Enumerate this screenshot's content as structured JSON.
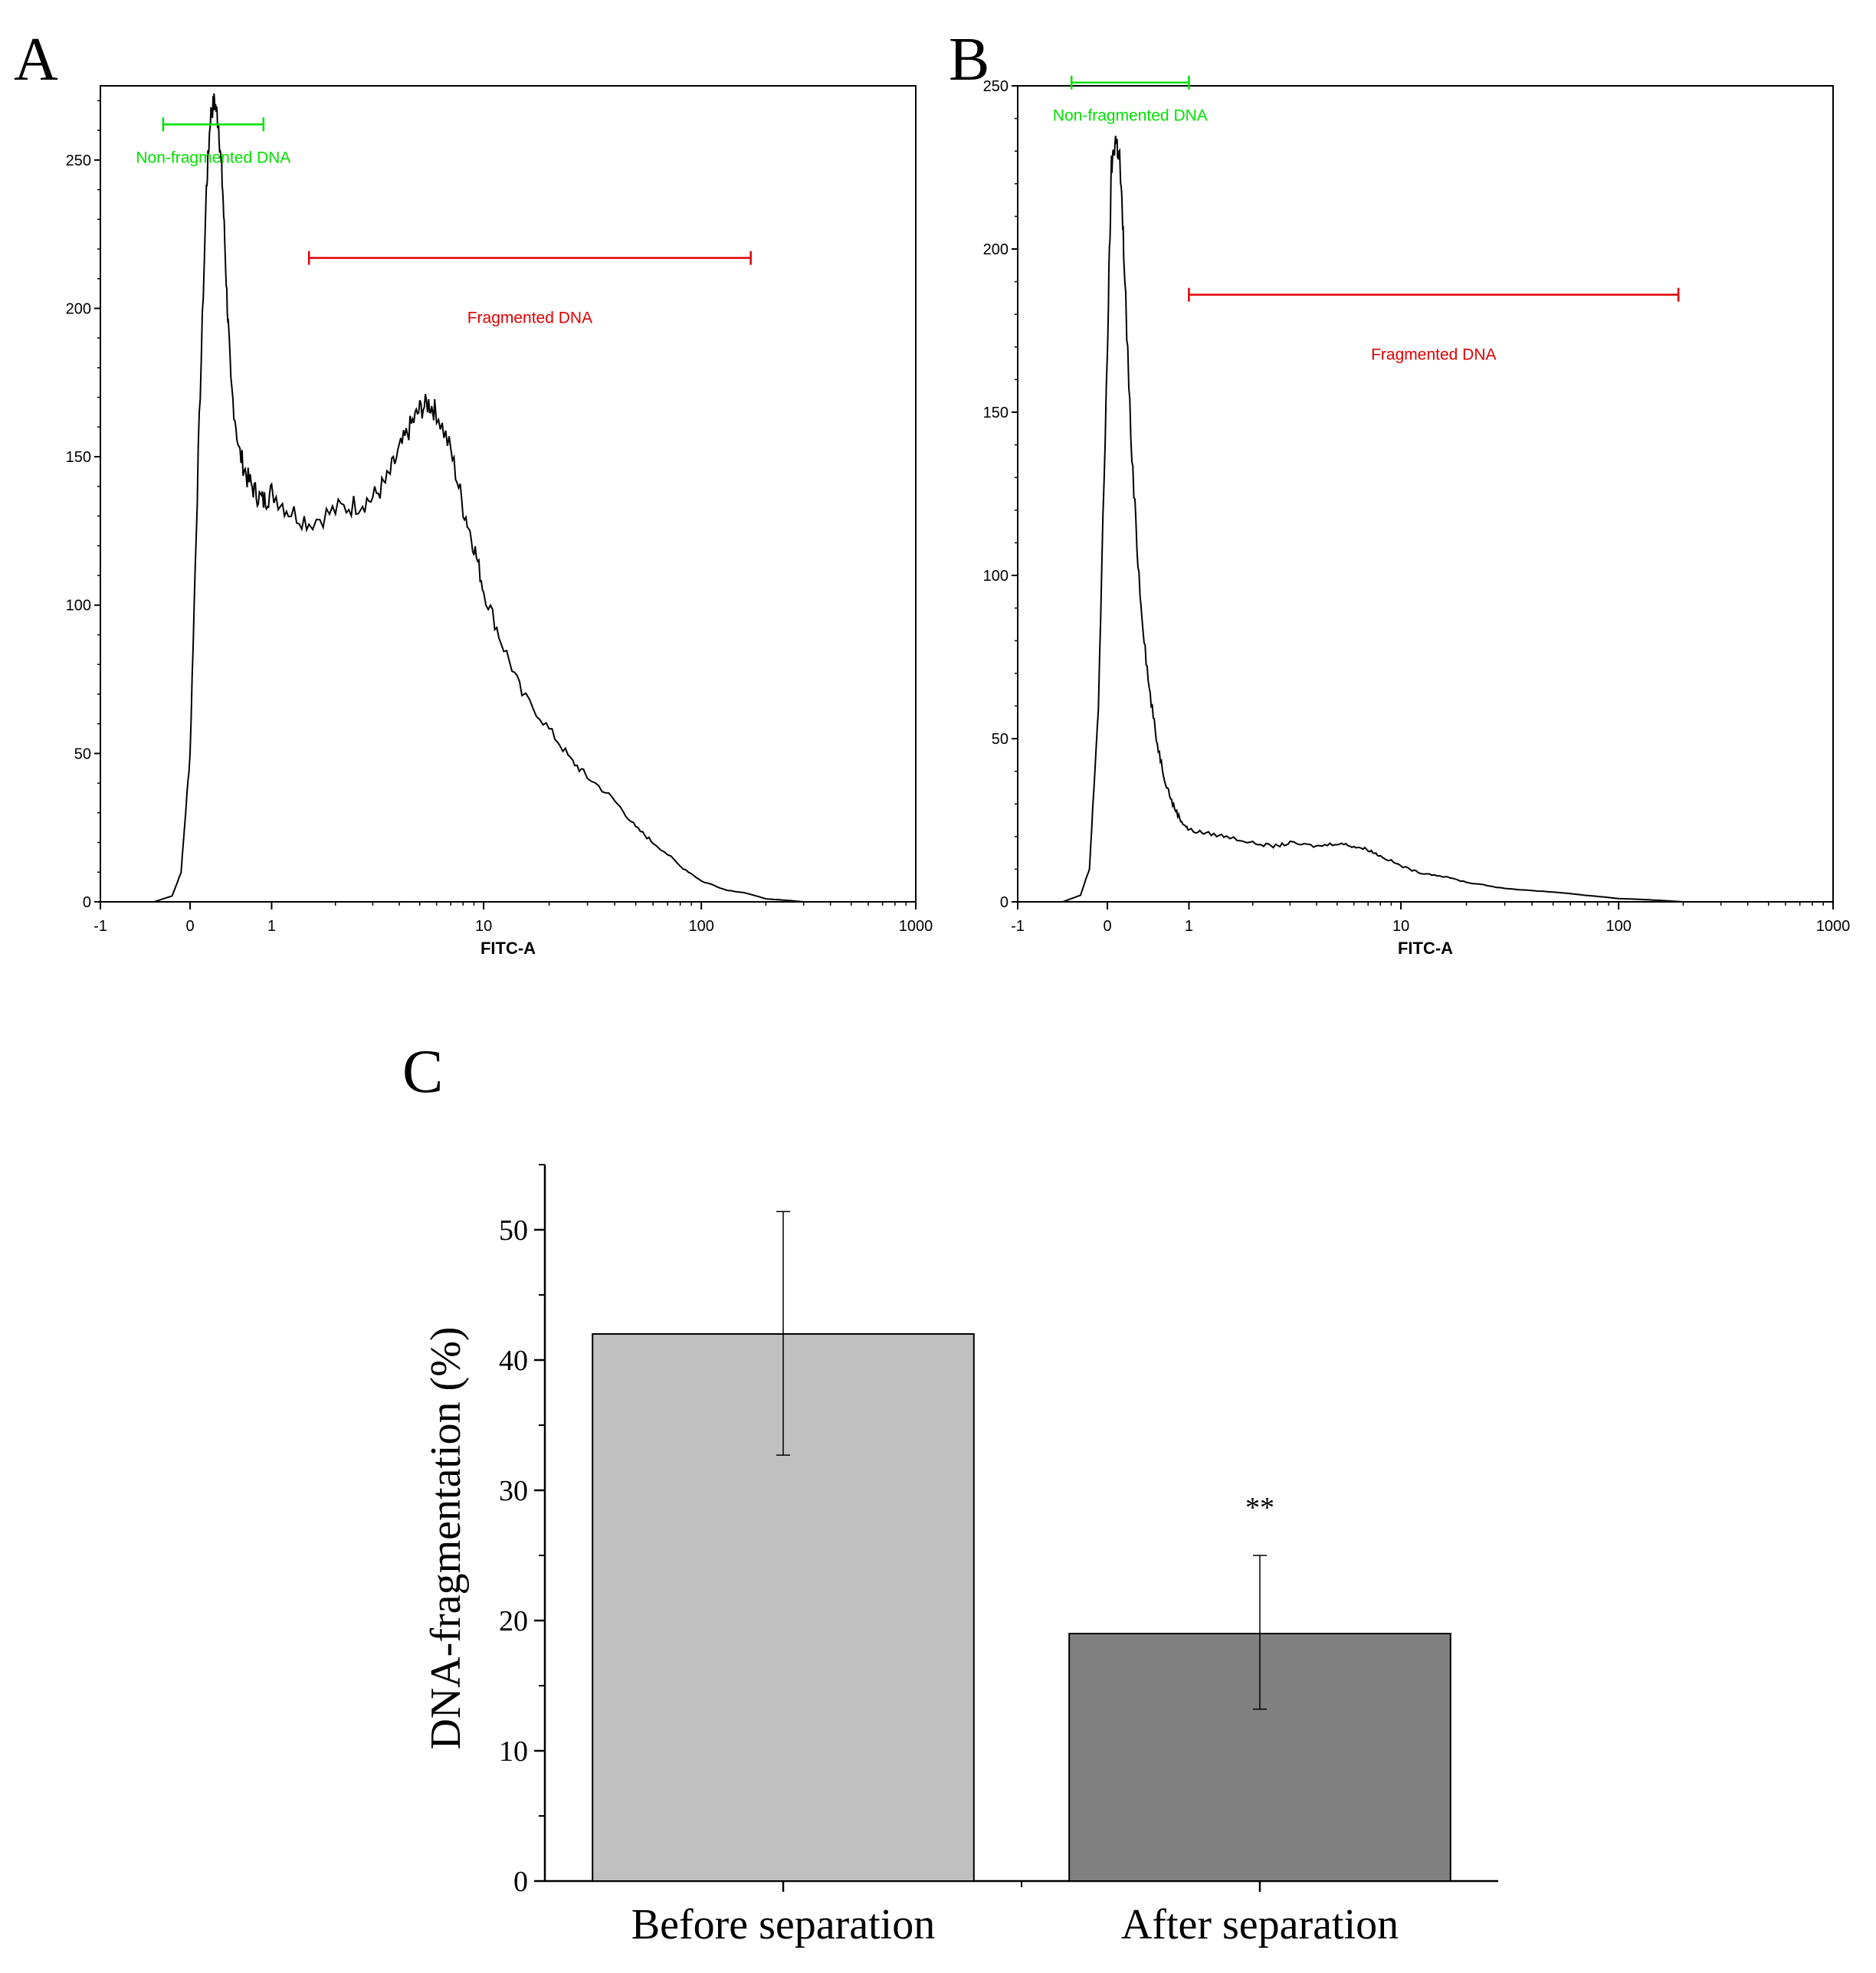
{
  "chart_data": [
    {
      "panel": "A",
      "type": "line",
      "xlabel": "FITC-A",
      "ylabel": "",
      "xscale": "biexponential",
      "x_ticks": [
        -1,
        0,
        1,
        10,
        100,
        1000
      ],
      "x_tick_labels": [
        "-1",
        "0",
        "1",
        "10",
        "100",
        "1000"
      ],
      "y_ticks": [
        0,
        50,
        100,
        150,
        200,
        250
      ],
      "y_tick_labels": [
        "0",
        "50",
        "100",
        "150",
        "200",
        "250"
      ],
      "xlim": [
        -1,
        1000
      ],
      "ylim": [
        0,
        275
      ],
      "grid": false,
      "series": [
        {
          "color": "#000000",
          "x": [
            -0.4,
            -0.2,
            -0.1,
            0,
            0.1,
            0.2,
            0.25,
            0.3,
            0.35,
            0.4,
            0.45,
            0.5,
            0.6,
            0.7,
            0.8,
            0.9,
            1.0,
            1.2,
            1.5,
            2,
            2.5,
            3,
            3.5,
            4,
            4.5,
            5,
            5.5,
            6,
            7,
            8,
            9,
            10,
            12,
            15,
            20,
            25,
            30,
            40,
            50,
            60,
            80,
            100,
            130,
            160,
            200,
            250,
            300
          ],
          "y": [
            0,
            2,
            10,
            50,
            150,
            240,
            265,
            270,
            262,
            240,
            205,
            175,
            152,
            143,
            138,
            135,
            138,
            132,
            128,
            132,
            134,
            136,
            142,
            152,
            160,
            166,
            168,
            165,
            152,
            133,
            120,
            105,
            88,
            70,
            58,
            48,
            42,
            34,
            25,
            20,
            12,
            7,
            4,
            3,
            1,
            0.5,
            0
          ]
        }
      ],
      "gates": [
        {
          "label": "Non-fragmented DNA",
          "color": "#00e000",
          "x_start": -0.3,
          "x_end": 0.9,
          "y": 262
        },
        {
          "label": "Fragmented DNA",
          "color": "#e00000",
          "x_start": 1.5,
          "x_end": 170,
          "y": 217
        }
      ]
    },
    {
      "panel": "B",
      "type": "line",
      "xlabel": "FITC-A",
      "ylabel": "",
      "xscale": "biexponential",
      "x_ticks": [
        -1,
        0,
        1,
        10,
        100,
        1000
      ],
      "x_tick_labels": [
        "-1",
        "0",
        "1",
        "10",
        "100",
        "1000"
      ],
      "y_ticks": [
        0,
        50,
        100,
        150,
        200,
        250
      ],
      "y_tick_labels": [
        "0",
        "50",
        "100",
        "150",
        "200",
        "250"
      ],
      "xlim": [
        -1,
        1000
      ],
      "ylim": [
        0,
        250
      ],
      "grid": false,
      "series": [
        {
          "color": "#000000",
          "x": [
            -0.5,
            -0.3,
            -0.2,
            -0.1,
            0,
            0.05,
            0.1,
            0.15,
            0.2,
            0.3,
            0.4,
            0.5,
            0.6,
            0.7,
            0.8,
            0.9,
            1.0,
            1.2,
            1.5,
            2,
            2.5,
            3,
            4,
            5,
            6,
            7,
            8,
            10,
            12,
            15,
            20,
            30,
            50,
            70,
            100,
            150,
            200
          ],
          "y": [
            0,
            2,
            10,
            60,
            170,
            225,
            234,
            228,
            200,
            135,
            95,
            68,
            50,
            38,
            30,
            25,
            22,
            21,
            20,
            18,
            17,
            18,
            17,
            18,
            17,
            16,
            14,
            11,
            9,
            8,
            6,
            4,
            3,
            2,
            1,
            0.5,
            0
          ]
        }
      ],
      "gates": [
        {
          "label": "Non-fragmented DNA",
          "color": "#00e000",
          "x_start": -0.4,
          "x_end": 1.0,
          "y": 251
        },
        {
          "label": "Fragmented DNA",
          "color": "#e00000",
          "x_start": 1.0,
          "x_end": 190,
          "y": 186
        }
      ]
    },
    {
      "panel": "C",
      "type": "bar",
      "title": "",
      "xlabel": "",
      "ylabel": "DNA-fragmentation (%)",
      "categories": [
        "Before separation",
        "After separation"
      ],
      "values": [
        42,
        19
      ],
      "errors": [
        {
          "low": 32.7,
          "high": 51.4
        },
        {
          "low": 13.2,
          "high": 25.0
        }
      ],
      "colors": [
        "#c0c0c0",
        "#808080"
      ],
      "annotations": [
        "",
        "**"
      ],
      "y_ticks": [
        0,
        10,
        20,
        30,
        40,
        50
      ],
      "y_tick_labels": [
        "0",
        "10",
        "20",
        "30",
        "40",
        "50"
      ],
      "ylim": [
        0,
        55
      ],
      "grid": false
    }
  ]
}
